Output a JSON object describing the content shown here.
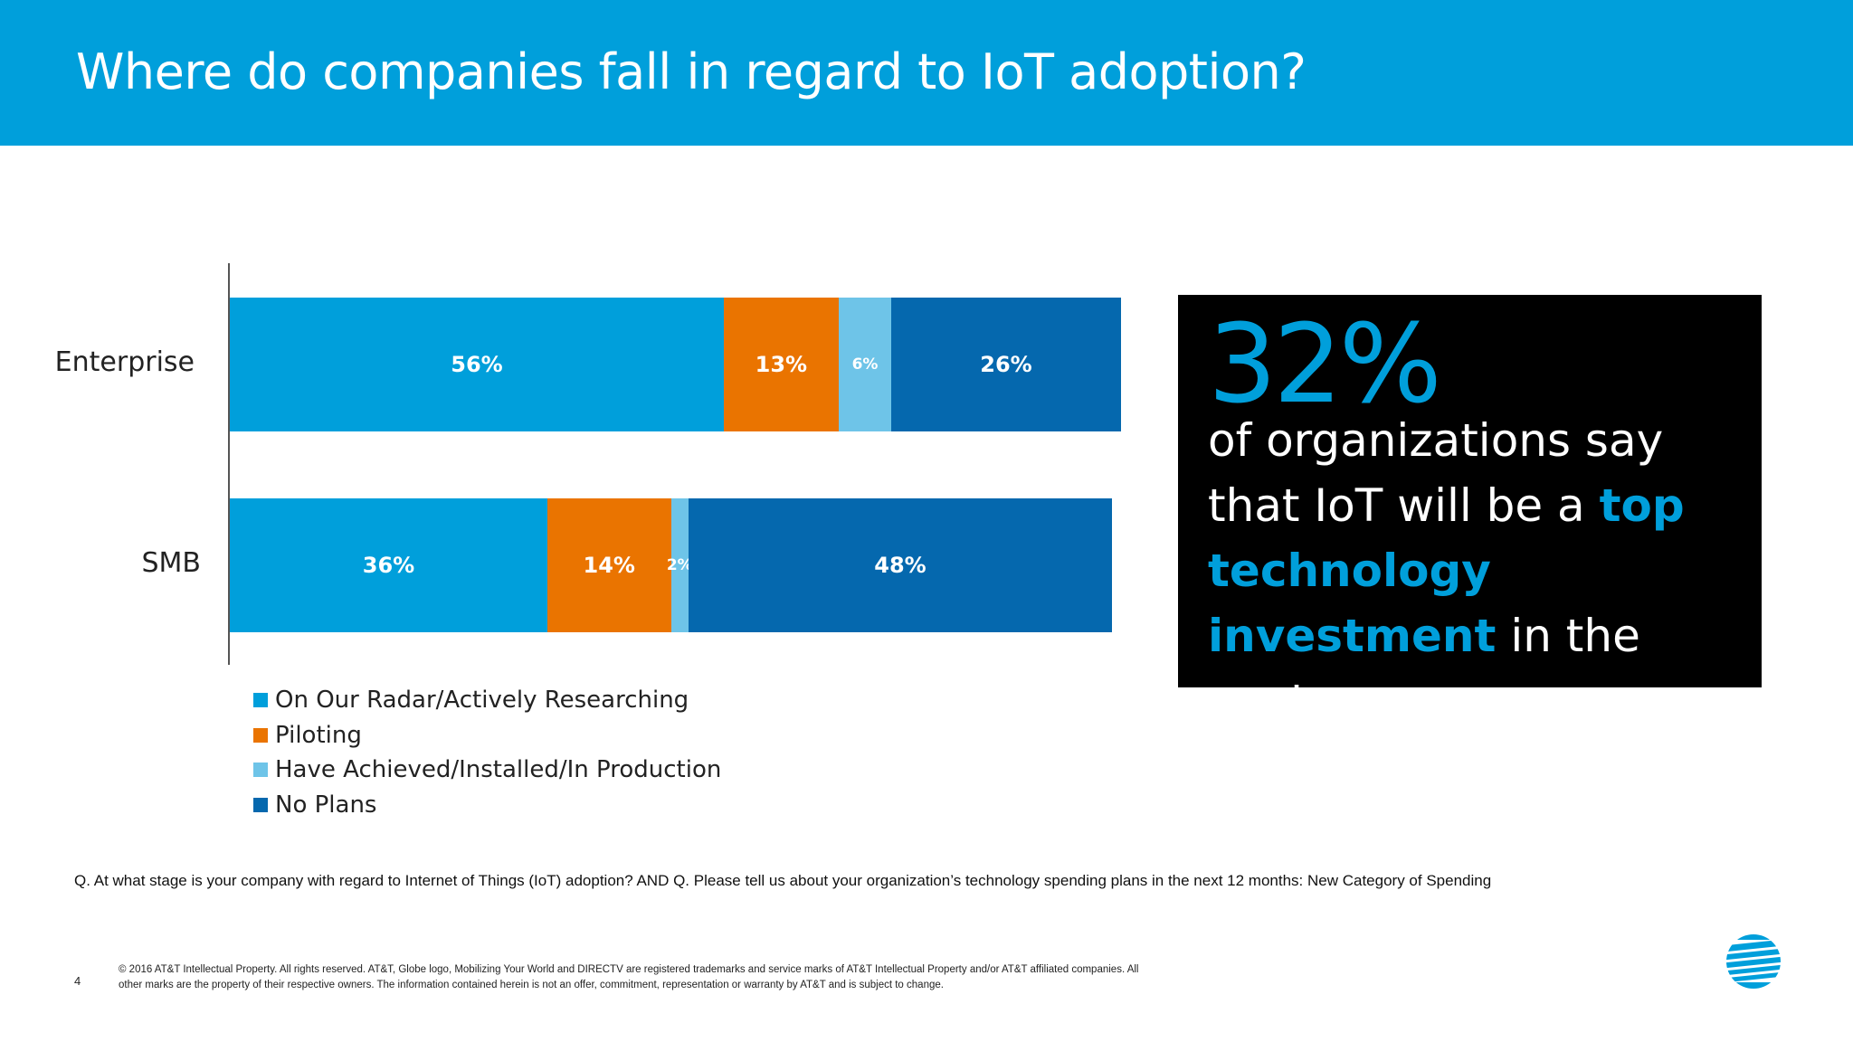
{
  "header": {
    "title": "Where do companies fall in regard to IoT adoption?"
  },
  "chart_data": {
    "type": "bar",
    "orientation": "horizontal",
    "stacked": true,
    "categories": [
      "Enterprise",
      "SMB"
    ],
    "series": [
      {
        "name": "On Our Radar/Actively Researching",
        "values": [
          56,
          36
        ],
        "labels": [
          "56%",
          "36%"
        ],
        "color": "#009FDB"
      },
      {
        "name": "Piloting",
        "values": [
          13,
          14
        ],
        "labels": [
          "13%",
          "14%"
        ],
        "color": "#EA7400"
      },
      {
        "name": "Have Achieved/Installed/In Production",
        "values": [
          6,
          2
        ],
        "labels": [
          "6%",
          "2%"
        ],
        "color": "#6EC4E8"
      },
      {
        "name": "No Plans",
        "values": [
          26,
          48
        ],
        "labels": [
          "26%",
          "48%"
        ],
        "color": "#0568AE"
      }
    ],
    "legend_position": "bottom-left",
    "grid": false
  },
  "callout": {
    "stat": "32%",
    "text_before": "of organizations say that IoT will be a ",
    "highlight": "top technology investment",
    "text_after": " in the next year",
    "highlight_color": "#009FDB"
  },
  "question": "Q. At what stage is your company with regard to Internet of Things (IoT) adoption? AND Q. Please tell us about your organization’s technology spending plans in the next 12 months: New Category of Spending",
  "footer": {
    "page_number": "4",
    "legal": "© 2016 AT&T Intellectual Property. All rights reserved. AT&T, Globe logo, Mobilizing Your World and DIRECTV are registered trademarks and service marks of AT&T Intellectual Property and/or AT&T affiliated companies. All other marks are the property of their respective owners. The information contained herein is not an offer, commitment, representation or warranty by AT&T and is subject to change."
  },
  "logo": {
    "name": "att-globe-logo",
    "color": "#009FDB"
  }
}
